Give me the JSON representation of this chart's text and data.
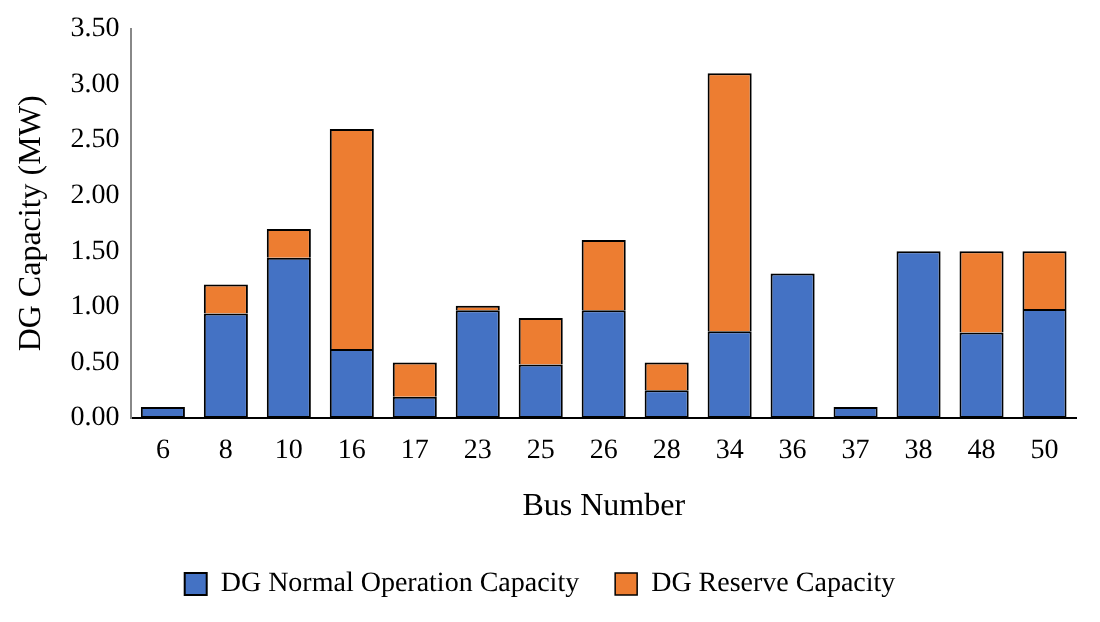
{
  "chart_data": {
    "type": "bar",
    "stacked": true,
    "xlabel": "Bus Number",
    "ylabel": "DG Capacity (MW)",
    "categories": [
      "6",
      "8",
      "10",
      "16",
      "17",
      "23",
      "25",
      "26",
      "28",
      "34",
      "36",
      "37",
      "38",
      "48",
      "50"
    ],
    "series": [
      {
        "name": "DG Normal Operation Capacity",
        "color": "#4472c4",
        "values": [
          0.1,
          0.94,
          1.44,
          0.62,
          0.19,
          0.97,
          0.48,
          0.97,
          0.25,
          0.78,
          1.3,
          0.1,
          1.5,
          0.77,
          0.98
        ]
      },
      {
        "name": "DG Reserve Capacity",
        "color": "#ed7d31",
        "values": [
          null,
          0.26,
          0.26,
          1.98,
          0.31,
          0.04,
          0.42,
          0.63,
          0.25,
          2.32,
          null,
          null,
          null,
          0.73,
          0.52
        ]
      }
    ],
    "ylim": [
      0,
      3.5
    ],
    "yticks": [
      {
        "value": 0,
        "label": "0.00"
      },
      {
        "value": 0.5,
        "label": "0.50"
      },
      {
        "value": 1,
        "label": "1.00"
      },
      {
        "value": 1.5,
        "label": "1.50"
      },
      {
        "value": 2,
        "label": "2.00"
      },
      {
        "value": 2.5,
        "label": "2.50"
      },
      {
        "value": 3,
        "label": "3.00"
      },
      {
        "value": 3.5,
        "label": "3.50"
      }
    ],
    "grid": false,
    "legend": "bottom"
  }
}
